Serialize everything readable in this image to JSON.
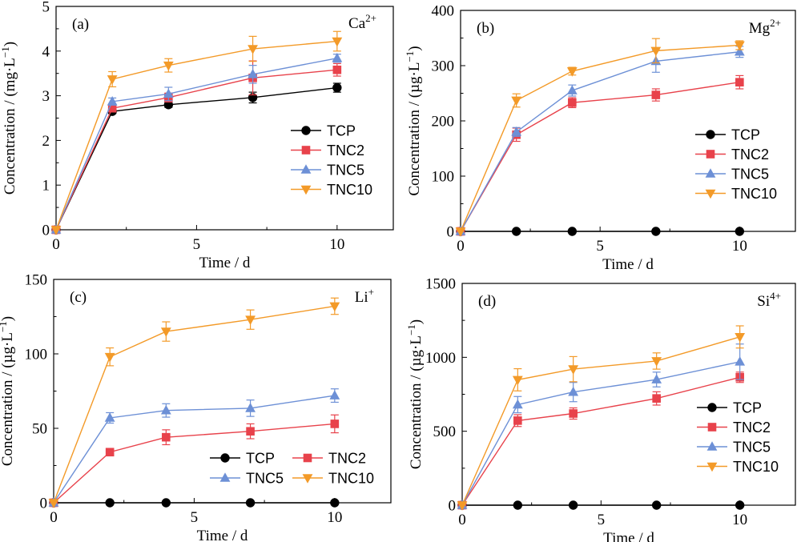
{
  "chart_data": [
    {
      "type": "line",
      "panel_label": "(a)",
      "ion": "Ca",
      "ion_charge": "2+",
      "xlabel": "Time / d",
      "ylabel_prefix": "Concentration / (mg·L",
      "ylabel_sup": "−1",
      "ylabel_suffix": ")",
      "xlim": [
        0,
        12
      ],
      "ylim": [
        0,
        5
      ],
      "xticks": [
        0,
        5,
        10
      ],
      "yticks": [
        0,
        1,
        2,
        3,
        4,
        5
      ],
      "x": [
        0,
        2,
        4,
        7,
        10
      ],
      "legend": {
        "layout": "column",
        "position": "lower-right"
      },
      "series": [
        {
          "name": "TCP",
          "marker": "circle",
          "color": "#000000",
          "values": [
            0,
            2.65,
            2.8,
            2.96,
            3.18
          ],
          "errors": [
            0,
            0.05,
            0.06,
            0.12,
            0.1
          ]
        },
        {
          "name": "TNC2",
          "marker": "square",
          "color": "#e8424b",
          "values": [
            0,
            2.72,
            2.96,
            3.4,
            3.58
          ],
          "errors": [
            0,
            0.08,
            0.1,
            0.38,
            0.14
          ]
        },
        {
          "name": "TNC5",
          "marker": "triangle-up",
          "color": "#6d90d6",
          "values": [
            0,
            2.87,
            3.04,
            3.48,
            3.84
          ],
          "errors": [
            0,
            0.08,
            0.15,
            0.2,
            0.09
          ]
        },
        {
          "name": "TNC10",
          "marker": "triangle-down",
          "color": "#f39a28",
          "values": [
            0,
            3.37,
            3.68,
            4.05,
            4.22
          ],
          "errors": [
            0,
            0.17,
            0.15,
            0.28,
            0.22
          ]
        }
      ]
    },
    {
      "type": "line",
      "panel_label": "(b)",
      "ion": "Mg",
      "ion_charge": "2+",
      "xlabel": "Time / d",
      "ylabel_prefix": "Concentration / (µg·L",
      "ylabel_sup": "−1",
      "ylabel_suffix": ")",
      "xlim": [
        0,
        12
      ],
      "ylim": [
        0,
        400
      ],
      "xticks": [
        0,
        5,
        10
      ],
      "yticks": [
        0,
        100,
        200,
        300,
        400
      ],
      "x": [
        0,
        2,
        4,
        7,
        10
      ],
      "legend": {
        "layout": "column",
        "position": "lower-right"
      },
      "series": [
        {
          "name": "TCP",
          "marker": "circle",
          "color": "#000000",
          "values": [
            0,
            0,
            0,
            0,
            0
          ],
          "errors": [
            0,
            0,
            0,
            0,
            0
          ]
        },
        {
          "name": "TNC2",
          "marker": "square",
          "color": "#e8424b",
          "values": [
            0,
            175,
            233,
            247,
            270
          ],
          "errors": [
            0,
            12,
            9,
            11,
            12
          ]
        },
        {
          "name": "TNC5",
          "marker": "triangle-up",
          "color": "#6d90d6",
          "values": [
            0,
            180,
            255,
            308,
            325
          ],
          "errors": [
            0,
            8,
            10,
            20,
            10
          ]
        },
        {
          "name": "TNC10",
          "marker": "triangle-down",
          "color": "#f39a28",
          "values": [
            0,
            237,
            290,
            327,
            337
          ],
          "errors": [
            0,
            12,
            7,
            22,
            8
          ]
        }
      ]
    },
    {
      "type": "line",
      "panel_label": "(c)",
      "ion": "Li",
      "ion_charge": "+",
      "xlabel": "Time / d",
      "ylabel_prefix": "Concentration / (µg·L",
      "ylabel_sup": "−1",
      "ylabel_suffix": ")",
      "xlim": [
        0,
        12
      ],
      "ylim": [
        0,
        150
      ],
      "xticks": [
        0,
        5,
        10
      ],
      "yticks": [
        0,
        50,
        100,
        150
      ],
      "x": [
        0,
        2,
        4,
        7,
        10
      ],
      "legend": {
        "layout": "grid",
        "position": "lower-right"
      },
      "series": [
        {
          "name": "TCP",
          "marker": "circle",
          "color": "#000000",
          "values": [
            0,
            0,
            0,
            0,
            0
          ],
          "errors": [
            0,
            0,
            0,
            0,
            0
          ]
        },
        {
          "name": "TNC2",
          "marker": "square",
          "color": "#e8424b",
          "values": [
            0,
            34,
            44,
            48,
            53
          ],
          "errors": [
            0,
            2,
            5,
            5,
            6
          ]
        },
        {
          "name": "TNC5",
          "marker": "triangle-up",
          "color": "#6d90d6",
          "values": [
            0,
            57,
            62,
            63.5,
            72
          ],
          "errors": [
            0,
            3.5,
            4.5,
            5.5,
            4.5
          ]
        },
        {
          "name": "TNC10",
          "marker": "triangle-down",
          "color": "#f39a28",
          "values": [
            0,
            98,
            115,
            123,
            132
          ],
          "errors": [
            0,
            6,
            6.5,
            6.5,
            5.5
          ]
        }
      ]
    },
    {
      "type": "line",
      "panel_label": "(d)",
      "ion": "Si",
      "ion_charge": "4+",
      "xlabel": "Time / d",
      "ylabel_prefix": "Concentration / (µg·L",
      "ylabel_sup": "−1",
      "ylabel_suffix": ")",
      "xlim": [
        0,
        12
      ],
      "ylim": [
        0,
        1500
      ],
      "xticks": [
        0,
        5,
        10
      ],
      "yticks": [
        0,
        500,
        1000,
        1500
      ],
      "x": [
        0,
        2,
        4,
        7,
        10
      ],
      "legend": {
        "layout": "column",
        "position": "lower-right"
      },
      "series": [
        {
          "name": "TCP",
          "marker": "circle",
          "color": "#000000",
          "values": [
            0,
            0,
            0,
            0,
            0
          ],
          "errors": [
            0,
            0,
            0,
            0,
            0
          ]
        },
        {
          "name": "TNC2",
          "marker": "square",
          "color": "#e8424b",
          "values": [
            0,
            572,
            620,
            722,
            865
          ],
          "errors": [
            0,
            40,
            38,
            45,
            35
          ]
        },
        {
          "name": "TNC5",
          "marker": "triangle-up",
          "color": "#6d90d6",
          "values": [
            0,
            680,
            765,
            850,
            970
          ],
          "errors": [
            0,
            55,
            65,
            50,
            120
          ]
        },
        {
          "name": "TNC10",
          "marker": "triangle-down",
          "color": "#f39a28",
          "values": [
            0,
            848,
            920,
            975,
            1138
          ],
          "errors": [
            0,
            75,
            85,
            55,
            75
          ]
        }
      ]
    }
  ]
}
